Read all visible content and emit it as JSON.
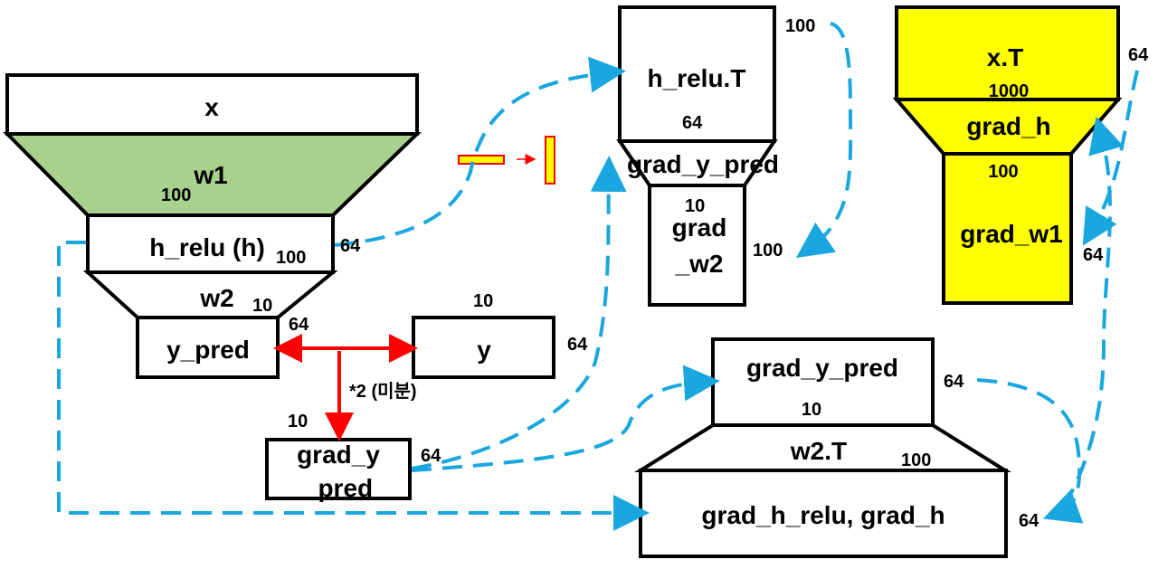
{
  "colors": {
    "w1_fill": "#a9d18e",
    "highlight_fill": "#ffff00",
    "flow_arrow": "#1aa7e0",
    "diff_arrow": "#ff0000",
    "transpose_icon_fill": "#ffff00",
    "transpose_icon_stroke": "#ff0000"
  },
  "labels": {
    "x": "x",
    "w1": "w1",
    "h_relu": "h_relu (h)",
    "w2": "w2",
    "y_pred": "y_pred",
    "y": "y",
    "derivative": "*2 (미분)",
    "grad_y_pred_left_1": "grad_y",
    "grad_y_pred_left_2": "_pred",
    "h_relu_T": "h_relu.T",
    "grad_y_pred_top": "grad_y_pred",
    "grad_w2_1": "grad",
    "grad_w2_2": "_w2",
    "x_T": "x.T",
    "grad_h": "grad_h",
    "grad_w1": "grad_w1",
    "grad_y_pred_bottom": "grad_y_pred",
    "w2_T": "w2.T",
    "grad_h_relu": "grad_h_relu, grad_h"
  },
  "dims": {
    "w1_rows": "100",
    "h_relu_cols": "100",
    "h_relu_rows": "64",
    "w2_rows": "10",
    "y_pred_rows": "64",
    "y_cols": "10",
    "y_rows": "64",
    "grad_left_cols": "10",
    "grad_left_rows": "64",
    "h_relu_T_rows": "100",
    "h_relu_T_cols": "64",
    "grad_top_cols": "10",
    "grad_w2_rows": "100",
    "x_T_rows": "64",
    "x_T_cols": "1000",
    "grad_w1_cols": "100",
    "grad_w1_rows": "64",
    "grad_bottom_rows": "64",
    "grad_bottom_cols": "10",
    "w2_T_cols": "100",
    "grad_h_relu_rows": "64"
  },
  "icons": {
    "transpose": "transpose-icon",
    "flow": "dashed-arrow",
    "diff": "double-arrow"
  }
}
